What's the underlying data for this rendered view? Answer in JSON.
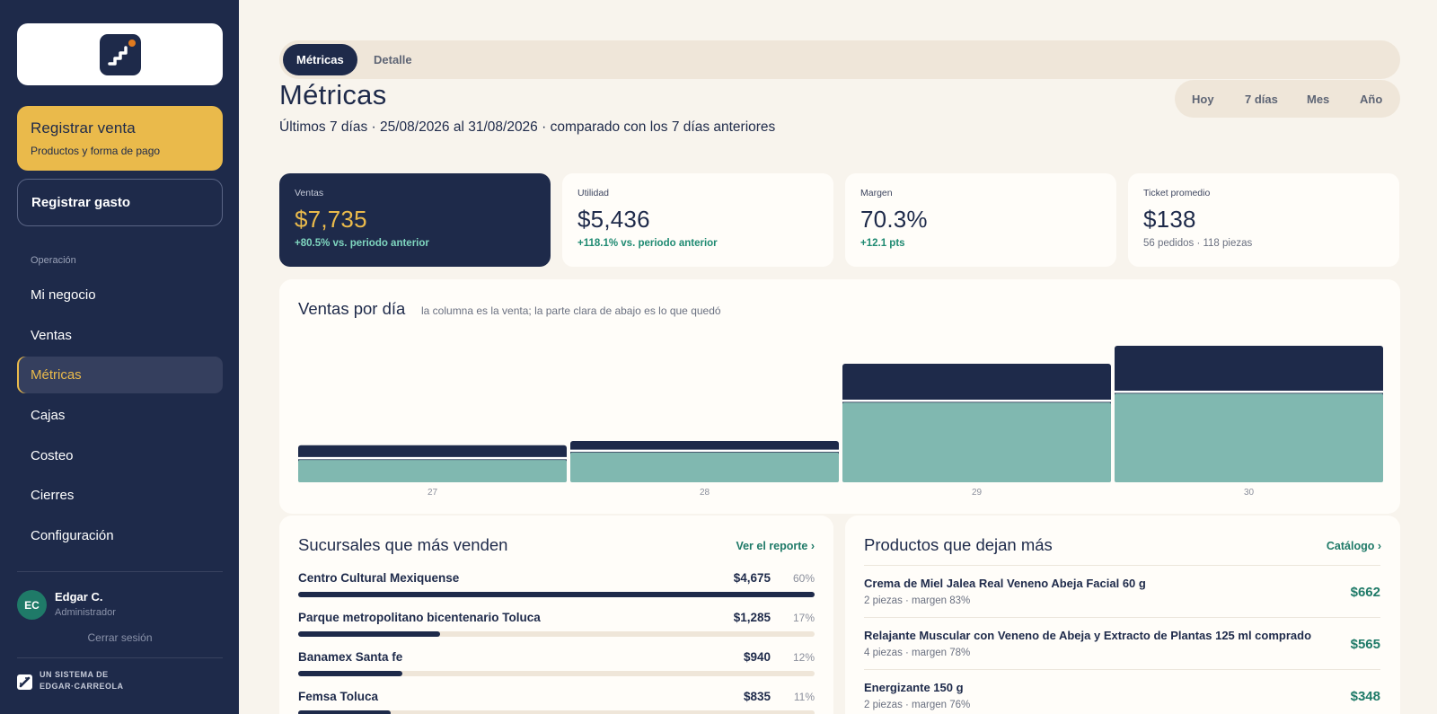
{
  "sidebar": {
    "register_sale": {
      "title": "Registrar venta",
      "subtitle": "Productos y forma de pago"
    },
    "register_expense": "Registrar gasto",
    "section_label": "Operación",
    "items": [
      {
        "label": "Mi negocio",
        "active": false
      },
      {
        "label": "Ventas",
        "active": false
      },
      {
        "label": "Métricas",
        "active": true
      },
      {
        "label": "Cajas",
        "active": false
      },
      {
        "label": "Costeo",
        "active": false
      },
      {
        "label": "Cierres",
        "active": false
      },
      {
        "label": "Configuración",
        "active": false
      }
    ],
    "user": {
      "initials": "EC",
      "name": "Edgar C.",
      "role": "Administrador"
    },
    "logout": "Cerrar sesión",
    "footer": {
      "line1": "UN SISTEMA DE",
      "line2": "EDGAR·CARREOLA"
    }
  },
  "tabs": [
    {
      "label": "Métricas",
      "active": true
    },
    {
      "label": "Detalle",
      "active": false
    }
  ],
  "header": {
    "title": "Métricas",
    "subtitle": "Últimos 7 días · 25/08/2026 al 31/08/2026 · comparado con los 7 días anteriores"
  },
  "ranges": [
    "Hoy",
    "7 días",
    "Mes",
    "Año"
  ],
  "kpis": [
    {
      "label": "Ventas",
      "value": "$7,735",
      "delta": "+80.5% vs. periodo anterior"
    },
    {
      "label": "Utilidad",
      "value": "$5,436",
      "delta": "+118.1% vs. periodo anterior"
    },
    {
      "label": "Margen",
      "value": "70.3%",
      "delta": "+12.1 pts"
    },
    {
      "label": "Ticket promedio",
      "value": "$138",
      "delta": "56 pedidos · 118 piezas"
    }
  ],
  "chart": {
    "title": "Ventas por día",
    "note": "la columna es la venta; la parte clara de abajo es lo que quedó"
  },
  "chart_data": {
    "type": "bar",
    "categories": [
      "27",
      "28",
      "29",
      "30"
    ],
    "series": [
      {
        "values": [
          475,
          530,
          1520,
          1750
        ]
      },
      {
        "values": [
          310,
          405,
          1045,
          1160
        ]
      }
    ],
    "colors": {
      "sales": "#1e2a4a",
      "profit": "#80b8b0"
    }
  },
  "branches": {
    "title": "Sucursales que más venden",
    "link": "Ver el reporte ›",
    "items": [
      {
        "name": "Centro Cultural Mexiquense",
        "value": "$4,675",
        "pct": "60%",
        "share": 1.0
      },
      {
        "name": "Parque metropolitano bicentenario Toluca",
        "value": "$1,285",
        "pct": "17%",
        "share": 0.275
      },
      {
        "name": "Banamex Santa fe",
        "value": "$940",
        "pct": "12%",
        "share": 0.201
      },
      {
        "name": "Femsa Toluca",
        "value": "$835",
        "pct": "11%",
        "share": 0.179
      }
    ]
  },
  "products": {
    "title": "Productos que dejan más",
    "link": "Catálogo ›",
    "items": [
      {
        "name": "Crema de Miel Jalea Real Veneno Abeja Facial 60 g",
        "meta": "2 piezas · margen 83%",
        "value": "$662"
      },
      {
        "name": "Relajante Muscular con Veneno de Abeja y Extracto de Plantas 125 ml comprado",
        "meta": "4 piezas · margen 78%",
        "value": "$565"
      },
      {
        "name": "Energizante 150 g",
        "meta": "2 piezas · margen 76%",
        "value": "$348"
      }
    ]
  }
}
